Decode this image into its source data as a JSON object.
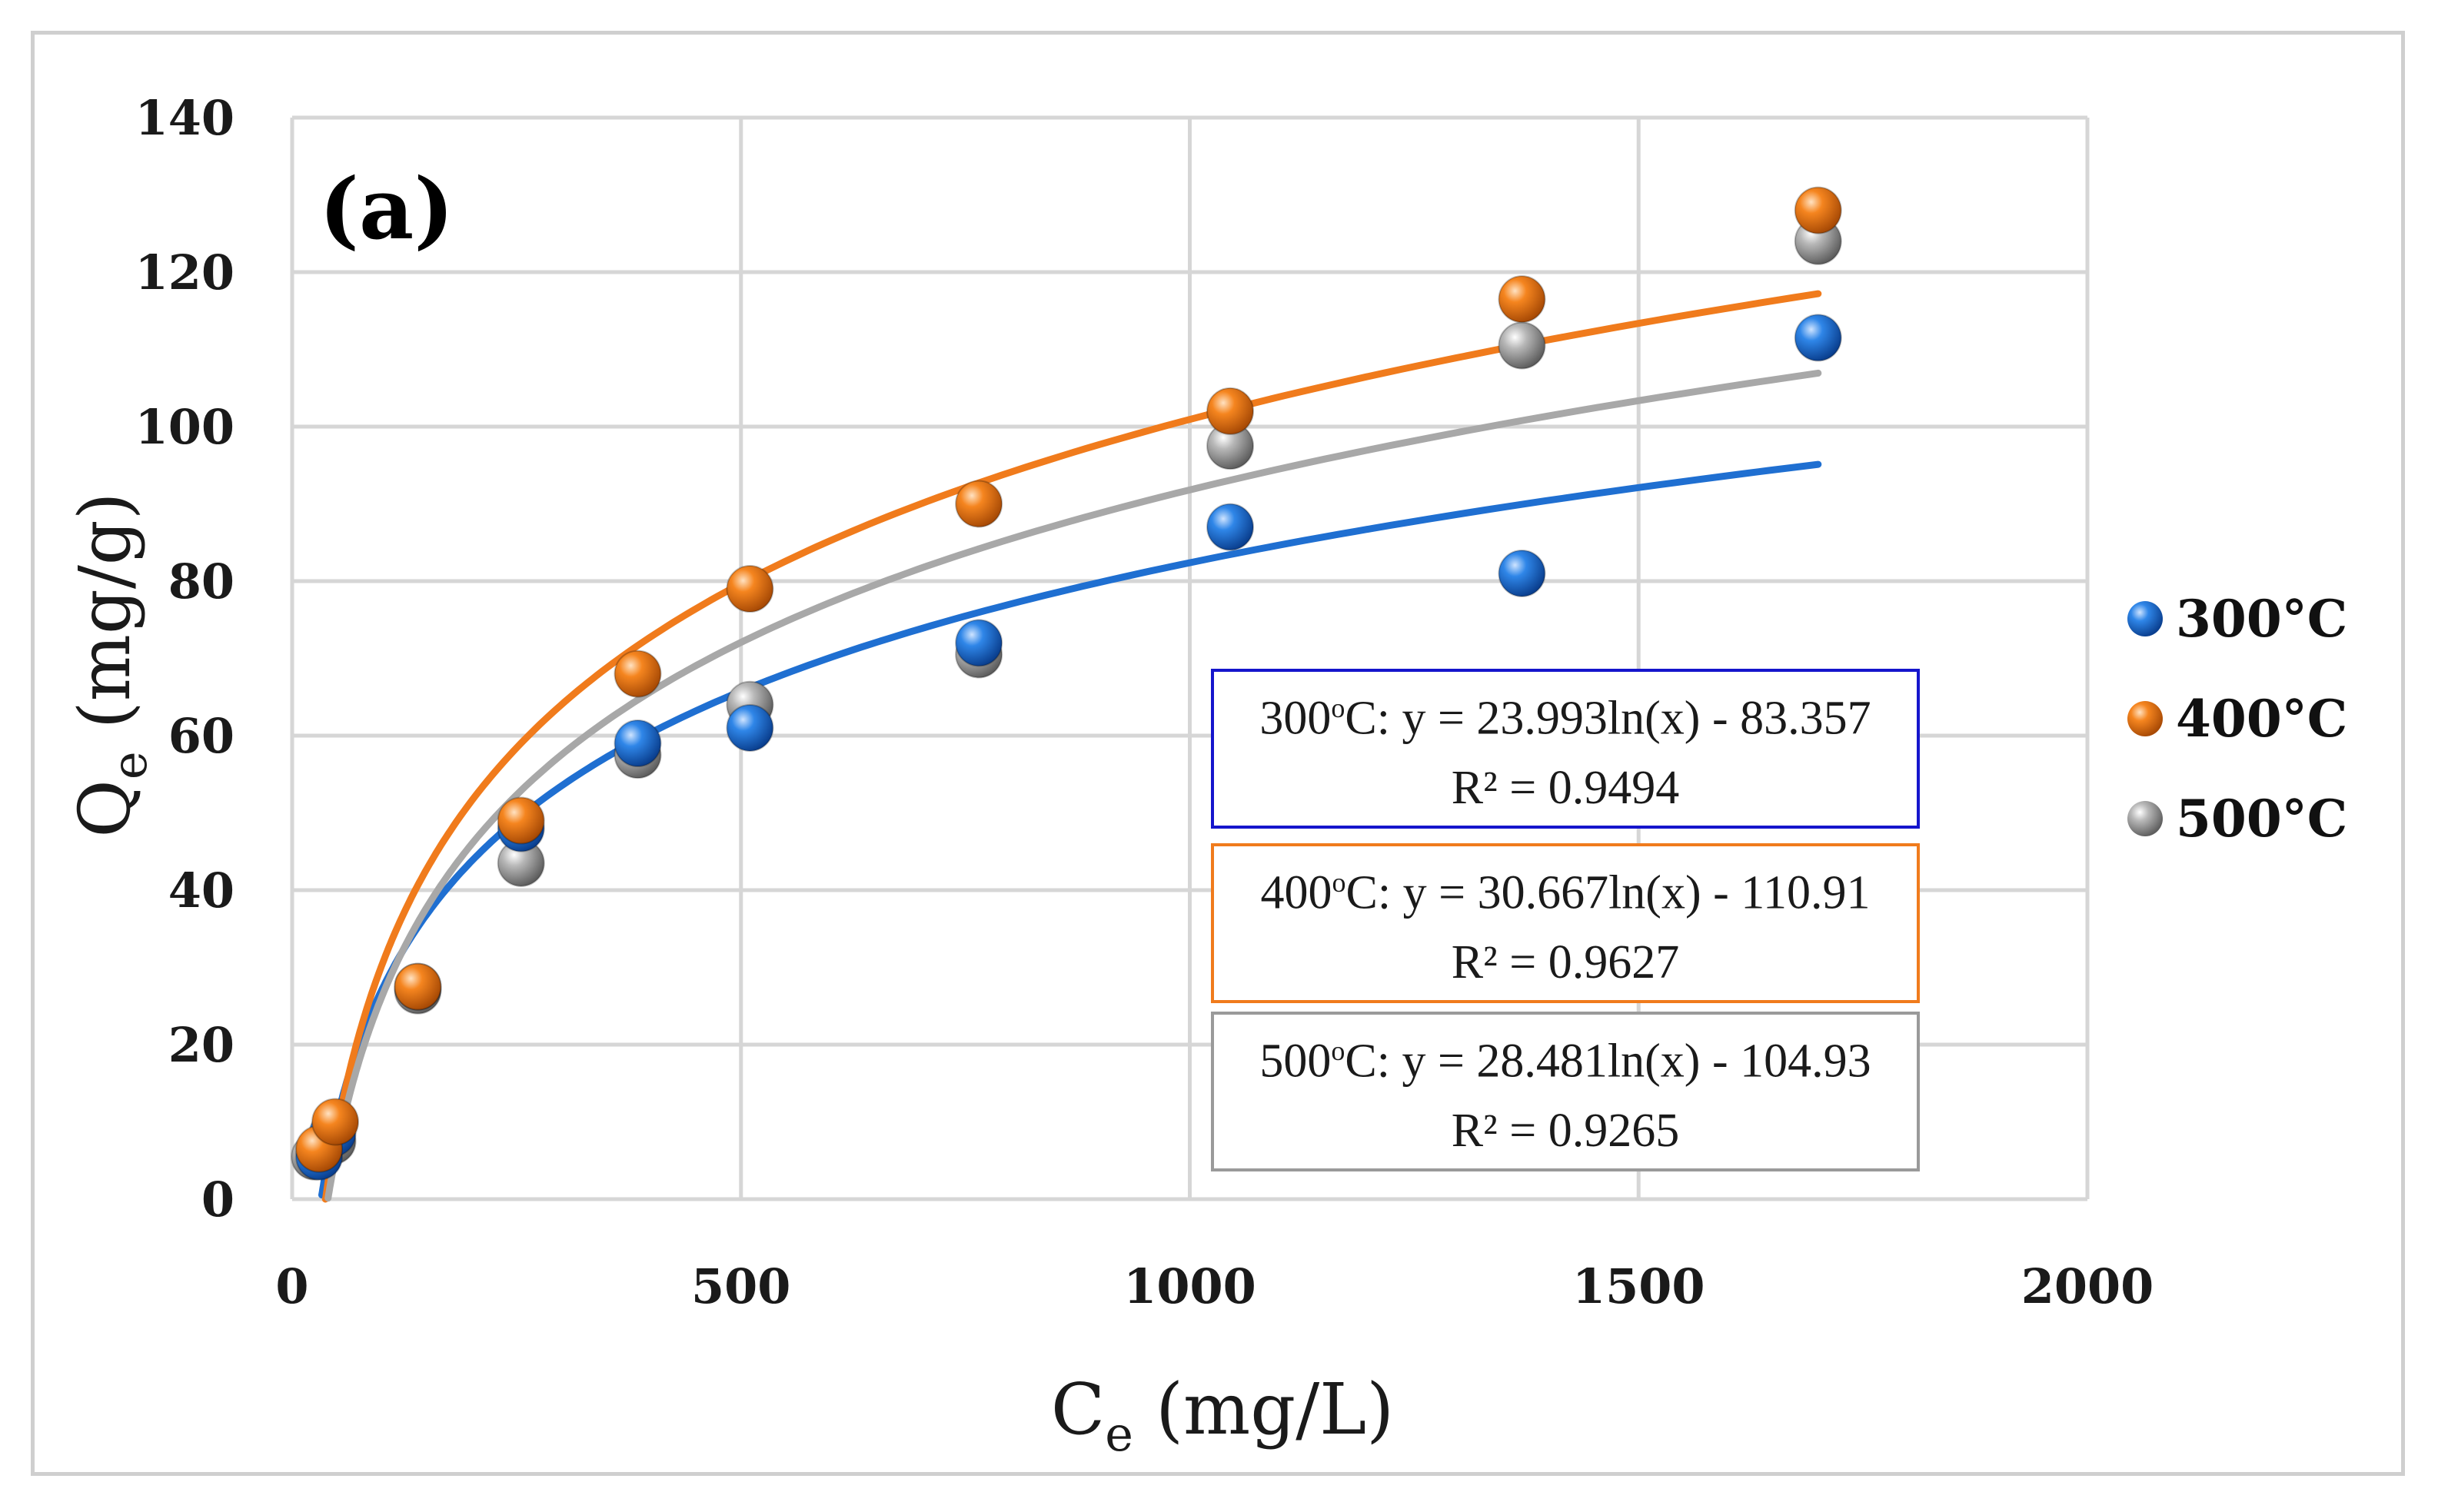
{
  "chart_data": {
    "type": "scatter",
    "panel_label": "(a)",
    "xlabel": {
      "main": "C",
      "sub": "e",
      "rest": " (mg/L)"
    },
    "ylabel": {
      "main": "Q",
      "sub": "e",
      "rest": " (mg/g)"
    },
    "xlim": [
      0,
      2000
    ],
    "ylim": [
      0,
      140
    ],
    "x_ticks": [
      "0",
      "500",
      "1000",
      "1500",
      "2000"
    ],
    "y_ticks": [
      "0",
      "20",
      "40",
      "60",
      "80",
      "100",
      "120",
      "140"
    ],
    "grid": true,
    "legend_position": "right",
    "series": [
      {
        "name": "300°C",
        "color": "#1f6fd1",
        "points": [
          [
            30,
            5.5
          ],
          [
            45,
            8.5
          ],
          [
            140,
            27.5
          ],
          [
            255,
            48
          ],
          [
            385,
            59
          ],
          [
            510,
            61
          ],
          [
            765,
            72
          ],
          [
            1045,
            87
          ],
          [
            1370,
            81
          ],
          [
            1700,
            111.5
          ]
        ],
        "fit": {
          "a": 23.993,
          "b": -83.357,
          "x_start": 33,
          "x_end": 1700
        },
        "equation": "300",
        "equation_tail": "C: y = 23.993ln(x) - 83.357",
        "r2": "R² = 0.9494",
        "box_color": "#1515cc"
      },
      {
        "name": "400°C",
        "color": "#f07b1c",
        "points": [
          [
            30,
            6.5
          ],
          [
            48,
            10
          ],
          [
            140,
            27.5
          ],
          [
            255,
            49
          ],
          [
            385,
            68
          ],
          [
            510,
            79
          ],
          [
            765,
            90
          ],
          [
            1045,
            102
          ],
          [
            1370,
            116.5
          ],
          [
            1700,
            128
          ]
        ],
        "fit": {
          "a": 30.667,
          "b": -110.91,
          "x_start": 37,
          "x_end": 1700
        },
        "equation": "400",
        "equation_tail": "C: y = 30.667ln(x) - 110.91",
        "r2": "R² = 0.9627",
        "box_color": "#f07b1c"
      },
      {
        "name": "500°C",
        "color": "#a8a8a8",
        "points": [
          [
            25,
            5.5
          ],
          [
            45,
            7.5
          ],
          [
            140,
            27
          ],
          [
            255,
            43.5
          ],
          [
            385,
            57.5
          ],
          [
            510,
            64
          ],
          [
            765,
            70.5
          ],
          [
            1045,
            97.5
          ],
          [
            1370,
            110.5
          ],
          [
            1700,
            124
          ]
        ],
        "fit": {
          "a": 28.481,
          "b": -104.93,
          "x_start": 40,
          "x_end": 1700
        },
        "equation": "500",
        "equation_tail": "C: y = 28.481ln(x) - 104.93",
        "r2": "R² = 0.9265",
        "box_color": "#9a9a9a"
      }
    ]
  },
  "equation_superscript": "o"
}
